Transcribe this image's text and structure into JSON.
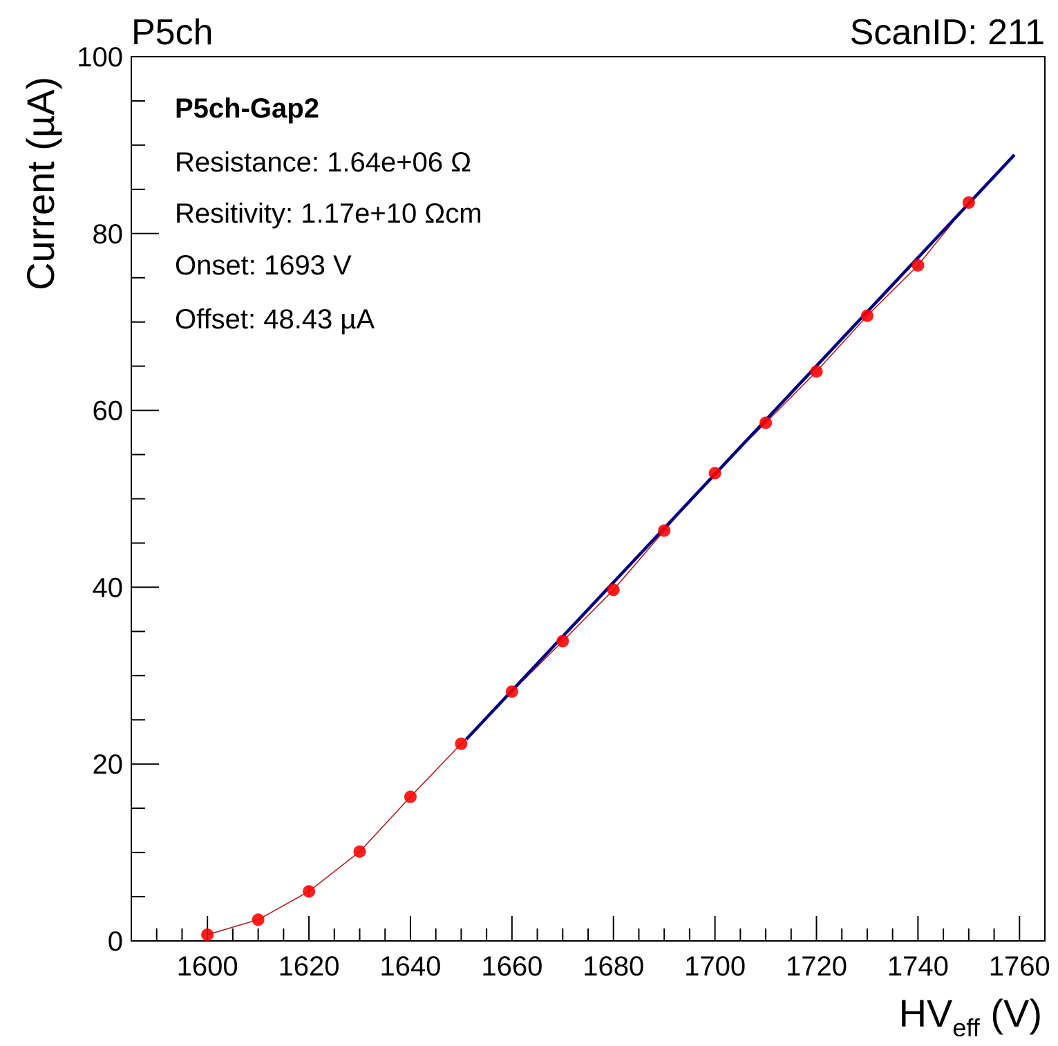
{
  "header": {
    "left_label": "P5ch",
    "right_label": "ScanID: 211"
  },
  "stats": {
    "title": "P5ch-Gap2",
    "lines": [
      "Resistance: 1.64e+06 Ω",
      "Resitivity: 1.17e+10 Ωcm",
      "Onset: 1693 V",
      "Offset: 48.43 µA"
    ]
  },
  "chart_data": {
    "type": "scatter",
    "ylabel": "Current (µA)",
    "xlabel": {
      "main": "HV",
      "subscript": "eff",
      "unit": " (V)"
    },
    "xlim": [
      1585,
      1765
    ],
    "ylim": [
      0,
      100
    ],
    "x_ticks": [
      1600,
      1620,
      1640,
      1660,
      1680,
      1700,
      1720,
      1740,
      1760
    ],
    "x_tick_labels": [
      "1600",
      "1620",
      "1640",
      "1660",
      "1680",
      "1700",
      "1720",
      "1740",
      "1760"
    ],
    "y_ticks": [
      0,
      20,
      40,
      60,
      80,
      100
    ],
    "y_tick_labels": [
      "0",
      "20",
      "40",
      "60",
      "80",
      "100"
    ],
    "series": [
      {
        "style": "markers-with-line",
        "color": "#ff0000",
        "line_color": "#b22222",
        "x": [
          1600,
          1610,
          1620,
          1630,
          1640,
          1650,
          1660,
          1670,
          1680,
          1690,
          1700,
          1710,
          1720,
          1730,
          1740,
          1750
        ],
        "y": [
          0.7,
          2.4,
          5.6,
          10.1,
          16.3,
          22.3,
          28.2,
          33.9,
          39.7,
          46.4,
          52.9,
          58.6,
          64.4,
          70.7,
          76.4,
          83.5
        ],
        "y_err": [
          0,
          0,
          0.6,
          0,
          0,
          0,
          0,
          0,
          0,
          0,
          0,
          0,
          0,
          0,
          0,
          0
        ]
      },
      {
        "style": "fit-line",
        "color": "#000080",
        "x": [
          1651,
          1759
        ],
        "y": [
          22.8,
          88.9
        ]
      }
    ],
    "grid": false,
    "legend": "none"
  }
}
